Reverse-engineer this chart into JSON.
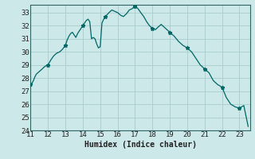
{
  "xlabel": "Humidex (Indice chaleur)",
  "bg_color": "#cce8e8",
  "grid_color": "#aacccc",
  "line_color": "#006666",
  "marker_color": "#006666",
  "xlim": [
    11,
    23.6
  ],
  "ylim": [
    24,
    33.6
  ],
  "xticks": [
    11,
    12,
    13,
    14,
    15,
    16,
    17,
    18,
    19,
    20,
    21,
    22,
    23
  ],
  "yticks": [
    24,
    25,
    26,
    27,
    28,
    29,
    30,
    31,
    32,
    33
  ],
  "x": [
    11.0,
    11.08,
    11.16,
    11.25,
    11.33,
    11.5,
    11.67,
    11.83,
    12.0,
    12.17,
    12.33,
    12.5,
    12.67,
    12.83,
    13.0,
    13.1,
    13.2,
    13.3,
    13.4,
    13.5,
    13.6,
    13.7,
    13.8,
    13.9,
    14.0,
    14.1,
    14.2,
    14.3,
    14.4,
    14.5,
    14.6,
    14.7,
    14.8,
    14.9,
    15.0,
    15.1,
    15.2,
    15.3,
    15.5,
    15.67,
    15.83,
    16.0,
    16.17,
    16.33,
    16.5,
    16.67,
    16.83,
    17.0,
    17.17,
    17.33,
    17.5,
    17.67,
    17.83,
    18.0,
    18.17,
    18.33,
    18.5,
    18.67,
    18.83,
    19.0,
    19.25,
    19.5,
    19.75,
    20.0,
    20.25,
    20.5,
    20.75,
    21.0,
    21.25,
    21.5,
    21.75,
    22.0,
    22.25,
    22.5,
    22.75,
    23.0,
    23.25,
    23.5
  ],
  "y": [
    27.5,
    27.6,
    27.8,
    28.1,
    28.3,
    28.5,
    28.7,
    28.9,
    29.0,
    29.4,
    29.7,
    29.9,
    30.0,
    30.2,
    30.5,
    30.9,
    31.2,
    31.4,
    31.5,
    31.3,
    31.1,
    31.4,
    31.6,
    31.8,
    32.0,
    32.2,
    32.4,
    32.5,
    32.3,
    31.0,
    31.1,
    31.0,
    30.6,
    30.3,
    30.4,
    32.2,
    32.5,
    32.7,
    33.0,
    33.2,
    33.1,
    33.0,
    32.8,
    32.7,
    32.9,
    33.2,
    33.3,
    33.5,
    33.3,
    33.0,
    32.7,
    32.3,
    32.0,
    31.8,
    31.7,
    31.9,
    32.1,
    31.9,
    31.7,
    31.5,
    31.2,
    30.8,
    30.5,
    30.3,
    30.0,
    29.5,
    29.0,
    28.7,
    28.4,
    27.8,
    27.5,
    27.3,
    26.5,
    26.0,
    25.8,
    25.7,
    25.9,
    24.3
  ],
  "marker_x": [
    11.0,
    12.0,
    13.0,
    14.0,
    15.3,
    17.0,
    18.0,
    19.0,
    20.0,
    21.0,
    22.0,
    23.0
  ],
  "marker_y": [
    27.5,
    29.0,
    30.5,
    32.0,
    32.7,
    33.5,
    31.8,
    31.5,
    30.3,
    28.7,
    27.3,
    25.7
  ]
}
